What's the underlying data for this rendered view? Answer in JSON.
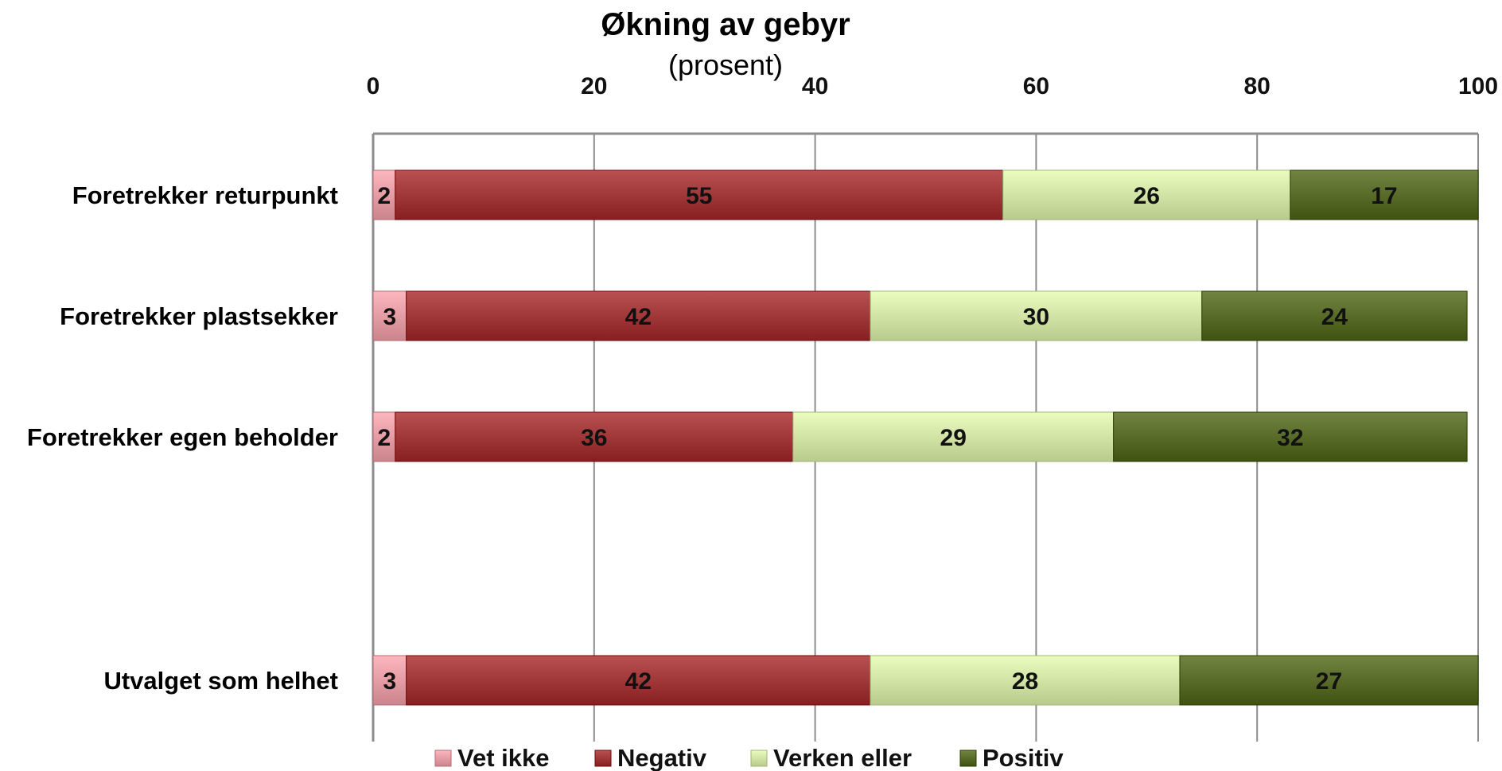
{
  "chart_data": {
    "type": "bar",
    "orientation": "horizontal",
    "stacked": true,
    "title": "Økning av gebyr",
    "subtitle": "(prosent)",
    "xlim": [
      0,
      100
    ],
    "x_ticks": [
      "0",
      "20",
      "40",
      "60",
      "80",
      "100"
    ],
    "x_tick_position": "top",
    "grid": true,
    "legend_position": "bottom",
    "categories": [
      "Foretrekker returpunkt",
      "Foretrekker plastsekker",
      "Foretrekker egen beholder",
      "",
      "Utvalget som helhet"
    ],
    "series": [
      {
        "name": "Vet ikke",
        "color": "#e8a0a8",
        "values": [
          2,
          3,
          2,
          null,
          3
        ]
      },
      {
        "name": "Negativ",
        "color": "#a33b3d",
        "values": [
          55,
          42,
          36,
          null,
          42
        ]
      },
      {
        "name": "Verken eller",
        "color": "#d4e6a8",
        "values": [
          26,
          30,
          29,
          null,
          28
        ]
      },
      {
        "name": "Positiv",
        "color": "#5b6e2b",
        "values": [
          17,
          24,
          32,
          null,
          27
        ]
      }
    ]
  }
}
